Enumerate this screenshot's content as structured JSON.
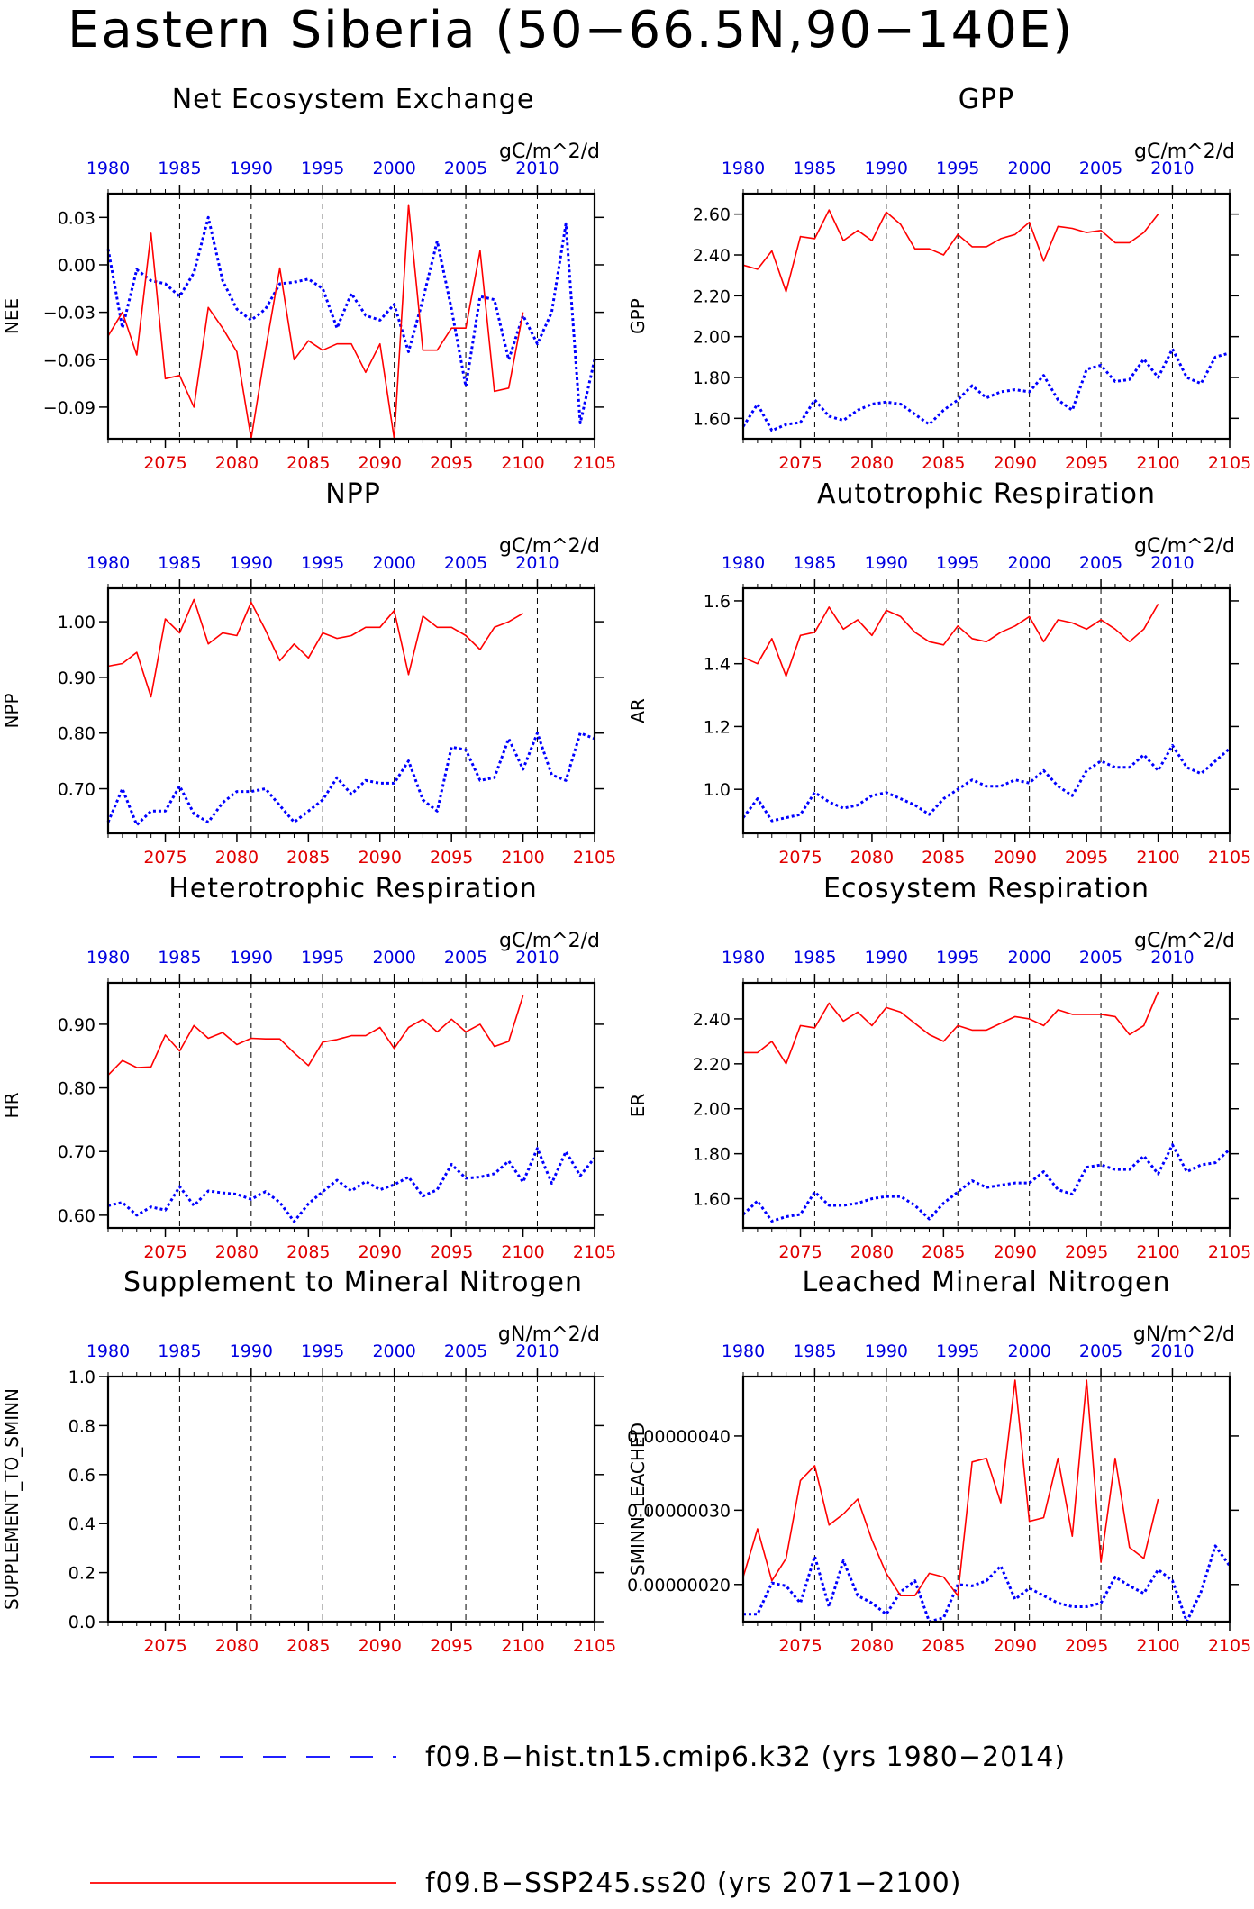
{
  "title": "Eastern Siberia (50−66.5N,90−140E)",
  "legend": [
    {
      "label": "f09.B−hist.tn15.cmip6.k32 (yrs 1980−2014)",
      "color": "#0000ff",
      "style": "dashed"
    },
    {
      "label": "f09.B−SSP245.ss20 (yrs 2071−2100)",
      "color": "#ff0000",
      "style": "solid"
    }
  ],
  "chart_data": [
    {
      "type": "line",
      "title": "Net Ecosystem Exchange",
      "units": "gC/m^2/d",
      "ylabel": "NEE",
      "ylim": [
        -0.11,
        0.045
      ],
      "yticks": [
        0.03,
        0.0,
        -0.03,
        -0.06,
        -0.09
      ],
      "ytick_labels": [
        "0.03",
        "0.00",
        "−0.03",
        "−0.06",
        "−0.09"
      ],
      "series": [
        {
          "x_start": 1980,
          "values": [
            0.01,
            -0.04,
            -0.003,
            -0.01,
            -0.012,
            -0.02,
            -0.005,
            0.03,
            -0.01,
            -0.028,
            -0.035,
            -0.028,
            -0.012,
            -0.011,
            -0.009,
            -0.015,
            -0.04,
            -0.018,
            -0.032,
            -0.035,
            -0.025,
            -0.055,
            -0.022,
            0.015,
            -0.028,
            -0.077,
            -0.02,
            -0.022,
            -0.06,
            -0.032,
            -0.05,
            -0.03,
            0.026,
            -0.1,
            -0.06
          ]
        },
        {
          "x_start": 2071,
          "values": [
            -0.045,
            -0.03,
            -0.057,
            0.02,
            -0.072,
            -0.07,
            -0.09,
            -0.027,
            -0.04,
            -0.055,
            -0.11,
            -0.054,
            -0.002,
            -0.06,
            -0.048,
            -0.054,
            -0.05,
            -0.05,
            -0.068,
            -0.05,
            -0.11,
            0.038,
            -0.054,
            -0.054,
            -0.04,
            -0.04,
            0.009,
            -0.08,
            -0.078,
            -0.03
          ]
        }
      ]
    },
    {
      "type": "line",
      "title": "GPP",
      "units": "gC/m^2/d",
      "ylabel": "GPP",
      "ylim": [
        1.5,
        2.7
      ],
      "yticks": [
        2.6,
        2.4,
        2.2,
        2.0,
        1.8,
        1.6
      ],
      "ytick_labels": [
        "2.60",
        "2.40",
        "2.20",
        "2.00",
        "1.80",
        "1.60"
      ],
      "series": [
        {
          "x_start": 1980,
          "values": [
            1.56,
            1.67,
            1.54,
            1.57,
            1.58,
            1.69,
            1.61,
            1.59,
            1.64,
            1.67,
            1.68,
            1.67,
            1.62,
            1.57,
            1.64,
            1.69,
            1.76,
            1.7,
            1.73,
            1.74,
            1.73,
            1.81,
            1.69,
            1.64,
            1.84,
            1.86,
            1.78,
            1.79,
            1.89,
            1.8,
            1.94,
            1.8,
            1.77,
            1.9,
            1.92
          ]
        },
        {
          "x_start": 2071,
          "values": [
            2.35,
            2.33,
            2.42,
            2.22,
            2.49,
            2.48,
            2.62,
            2.47,
            2.52,
            2.47,
            2.61,
            2.55,
            2.43,
            2.43,
            2.4,
            2.5,
            2.44,
            2.44,
            2.48,
            2.5,
            2.56,
            2.37,
            2.54,
            2.53,
            2.51,
            2.52,
            2.46,
            2.46,
            2.51,
            2.6
          ]
        }
      ]
    },
    {
      "type": "line",
      "title": "NPP",
      "units": "gC/m^2/d",
      "ylabel": "NPP",
      "ylim": [
        0.62,
        1.06
      ],
      "yticks": [
        1.0,
        0.9,
        0.8,
        0.7
      ],
      "ytick_labels": [
        "1.00",
        "0.90",
        "0.80",
        "0.70"
      ],
      "series": [
        {
          "x_start": 1980,
          "values": [
            0.64,
            0.7,
            0.635,
            0.66,
            0.66,
            0.705,
            0.655,
            0.64,
            0.675,
            0.695,
            0.695,
            0.7,
            0.67,
            0.64,
            0.66,
            0.68,
            0.72,
            0.69,
            0.715,
            0.71,
            0.71,
            0.75,
            0.68,
            0.66,
            0.775,
            0.77,
            0.715,
            0.72,
            0.79,
            0.735,
            0.8,
            0.725,
            0.715,
            0.8,
            0.79
          ]
        },
        {
          "x_start": 2071,
          "values": [
            0.92,
            0.925,
            0.945,
            0.865,
            1.005,
            0.98,
            1.04,
            0.96,
            0.98,
            0.975,
            1.035,
            0.985,
            0.93,
            0.96,
            0.935,
            0.98,
            0.97,
            0.975,
            0.99,
            0.99,
            1.02,
            0.905,
            1.01,
            0.99,
            0.99,
            0.975,
            0.95,
            0.99,
            1.0,
            1.015
          ]
        }
      ]
    },
    {
      "type": "line",
      "title": "Autotrophic Respiration",
      "units": "gC/m^2/d",
      "ylabel": "AR",
      "ylim": [
        0.86,
        1.64
      ],
      "yticks": [
        1.6,
        1.4,
        1.2,
        1.0
      ],
      "ytick_labels": [
        "1.6",
        "1.4",
        "1.2",
        "1.0"
      ],
      "series": [
        {
          "x_start": 1980,
          "values": [
            0.91,
            0.97,
            0.9,
            0.91,
            0.92,
            0.99,
            0.96,
            0.94,
            0.95,
            0.98,
            0.99,
            0.97,
            0.95,
            0.92,
            0.97,
            1.0,
            1.03,
            1.01,
            1.01,
            1.03,
            1.02,
            1.06,
            1.01,
            0.98,
            1.06,
            1.09,
            1.07,
            1.07,
            1.11,
            1.06,
            1.14,
            1.07,
            1.05,
            1.09,
            1.13
          ]
        },
        {
          "x_start": 2071,
          "values": [
            1.42,
            1.4,
            1.48,
            1.36,
            1.49,
            1.5,
            1.58,
            1.51,
            1.54,
            1.49,
            1.57,
            1.55,
            1.5,
            1.47,
            1.46,
            1.52,
            1.48,
            1.47,
            1.5,
            1.52,
            1.55,
            1.47,
            1.54,
            1.53,
            1.51,
            1.54,
            1.51,
            1.47,
            1.51,
            1.59
          ]
        }
      ]
    },
    {
      "type": "line",
      "title": "Heterotrophic Respiration",
      "units": "gC/m^2/d",
      "ylabel": "HR",
      "ylim": [
        0.58,
        0.965
      ],
      "yticks": [
        0.9,
        0.8,
        0.7,
        0.6
      ],
      "ytick_labels": [
        "0.90",
        "0.80",
        "0.70",
        "0.60"
      ],
      "series": [
        {
          "x_start": 1980,
          "values": [
            0.615,
            0.62,
            0.6,
            0.613,
            0.608,
            0.645,
            0.615,
            0.638,
            0.635,
            0.633,
            0.625,
            0.637,
            0.62,
            0.59,
            0.618,
            0.637,
            0.655,
            0.638,
            0.653,
            0.64,
            0.648,
            0.66,
            0.63,
            0.64,
            0.68,
            0.658,
            0.66,
            0.665,
            0.685,
            0.652,
            0.705,
            0.65,
            0.7,
            0.662,
            0.69
          ]
        },
        {
          "x_start": 2071,
          "values": [
            0.82,
            0.843,
            0.832,
            0.833,
            0.883,
            0.858,
            0.898,
            0.878,
            0.887,
            0.868,
            0.878,
            0.877,
            0.877,
            0.855,
            0.835,
            0.872,
            0.876,
            0.882,
            0.882,
            0.895,
            0.862,
            0.895,
            0.908,
            0.888,
            0.908,
            0.888,
            0.9,
            0.865,
            0.873,
            0.945
          ]
        }
      ]
    },
    {
      "type": "line",
      "title": "Ecosystem Respiration",
      "units": "gC/m^2/d",
      "ylabel": "ER",
      "ylim": [
        1.47,
        2.56
      ],
      "yticks": [
        2.4,
        2.2,
        2.0,
        1.8,
        1.6
      ],
      "ytick_labels": [
        "2.40",
        "2.20",
        "2.00",
        "1.80",
        "1.60"
      ],
      "series": [
        {
          "x_start": 1980,
          "values": [
            1.53,
            1.59,
            1.5,
            1.52,
            1.53,
            1.63,
            1.57,
            1.57,
            1.58,
            1.6,
            1.61,
            1.61,
            1.57,
            1.51,
            1.58,
            1.63,
            1.68,
            1.65,
            1.66,
            1.67,
            1.67,
            1.72,
            1.64,
            1.62,
            1.74,
            1.75,
            1.73,
            1.73,
            1.79,
            1.71,
            1.84,
            1.72,
            1.75,
            1.76,
            1.82
          ]
        },
        {
          "x_start": 2071,
          "values": [
            2.25,
            2.25,
            2.3,
            2.2,
            2.37,
            2.36,
            2.47,
            2.39,
            2.43,
            2.37,
            2.45,
            2.43,
            2.38,
            2.33,
            2.3,
            2.37,
            2.35,
            2.35,
            2.38,
            2.41,
            2.4,
            2.37,
            2.44,
            2.42,
            2.42,
            2.42,
            2.41,
            2.33,
            2.37,
            2.52
          ]
        }
      ]
    },
    {
      "type": "line",
      "title": "Supplement to Mineral Nitrogen",
      "units": "gN/m^2/d",
      "ylabel": "SUPPLEMENT_TO_SMINN",
      "ylim": [
        0.0,
        1.0
      ],
      "yticks": [
        1.0,
        0.8,
        0.6,
        0.4,
        0.2,
        0.0
      ],
      "ytick_labels": [
        "1.0",
        "0.8",
        "0.6",
        "0.4",
        "0.2",
        "0.0"
      ],
      "series": []
    },
    {
      "type": "line",
      "title": "Leached Mineral Nitrogen",
      "units": "gN/m^2/d",
      "ylabel": "SMINN_LEACHED",
      "ylim": [
        1.5e-07,
        4.8e-07
      ],
      "yticks": [
        4e-07,
        3e-07,
        2e-07
      ],
      "ytick_labels": [
        "0.00000040",
        "0.00000030",
        "0.00000020"
      ],
      "series": [
        {
          "x_start": 1980,
          "values": [
            1.6e-07,
            1.6e-07,
            2.02e-07,
            1.98e-07,
            1.75e-07,
            2.38e-07,
            1.7e-07,
            2.32e-07,
            1.85e-07,
            1.75e-07,
            1.6e-07,
            1.9e-07,
            2.05e-07,
            1.5e-07,
            1.55e-07,
            2e-07,
            1.98e-07,
            2.05e-07,
            2.25e-07,
            1.8e-07,
            1.95e-07,
            1.85e-07,
            1.75e-07,
            1.7e-07,
            1.7e-07,
            1.75e-07,
            2.1e-07,
            1.98e-07,
            1.88e-07,
            2.2e-07,
            2.05e-07,
            1.5e-07,
            1.9e-07,
            2.52e-07,
            2.25e-07
          ]
        },
        {
          "x_start": 2071,
          "values": [
            2.1e-07,
            2.75e-07,
            2.05e-07,
            2.35e-07,
            3.4e-07,
            3.6e-07,
            2.8e-07,
            2.95e-07,
            3.15e-07,
            2.6e-07,
            2.15e-07,
            1.85e-07,
            1.85e-07,
            2.15e-07,
            2.1e-07,
            1.85e-07,
            3.65e-07,
            3.7e-07,
            3.1e-07,
            4.75e-07,
            2.85e-07,
            2.9e-07,
            3.7e-07,
            2.65e-07,
            4.75e-07,
            2.3e-07,
            3.7e-07,
            2.5e-07,
            2.35e-07,
            3.15e-07
          ]
        }
      ]
    }
  ],
  "axes": {
    "top_ticks": [
      "1980",
      "1985",
      "1990",
      "1995",
      "2000",
      "2005",
      "2010"
    ],
    "bottom_ticks": [
      "2075",
      "2080",
      "2085",
      "2090",
      "2095",
      "2100",
      "2105"
    ],
    "x_start": 1980,
    "x_end": 2014
  }
}
